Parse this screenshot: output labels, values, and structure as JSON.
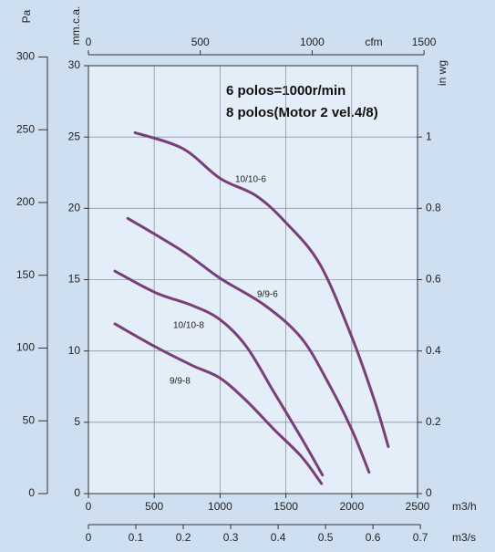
{
  "chart_data": {
    "type": "line",
    "annotations": [
      "6 polos=1000r/min",
      "8 polos(Motor 2 vel.4/8)"
    ],
    "x_label": "m3/h",
    "xlim": [
      0,
      2500
    ],
    "xticks": [
      0,
      500,
      1000,
      1500,
      2000,
      2500
    ],
    "y_label": "mm.c.a.",
    "ylim": [
      0,
      30
    ],
    "yticks": [
      0,
      5,
      10,
      15,
      20,
      25,
      30
    ],
    "grid": true,
    "pa_axis": {
      "label": "Pa",
      "lim": [
        0,
        294
      ],
      "ticks": [
        0,
        50,
        100,
        150,
        200,
        250,
        300
      ]
    },
    "inwg_axis": {
      "label": "in wg",
      "lim": [
        0,
        1.2
      ],
      "ticks": [
        0,
        0.2,
        0.4,
        0.6,
        0.8,
        1
      ]
    },
    "cfm_axis": {
      "label": "cfm",
      "lim": [
        0,
        1471
      ],
      "ticks": [
        0,
        500,
        1000,
        1500
      ]
    },
    "m3s_axis": {
      "label": "m3/s",
      "lim": [
        0,
        0.694
      ],
      "ticks": [
        0,
        0.1,
        0.2,
        0.3,
        0.4,
        0.5,
        0.6,
        0.7
      ]
    },
    "series": [
      {
        "name": "10/10-6",
        "color": "#7a3e78",
        "x": [
          354,
          715,
          1000,
          1271,
          1500,
          1757,
          2000,
          2174,
          2278
        ],
        "values": [
          25.3,
          24.2,
          22.1,
          20.9,
          19.0,
          16.1,
          11.0,
          6.5,
          3.3
        ]
      },
      {
        "name": "9/9-6",
        "color": "#7a3e78",
        "x": [
          299,
          715,
          1000,
          1340,
          1618,
          1826,
          2000,
          2132
        ],
        "values": [
          19.3,
          17.0,
          15.1,
          13.2,
          10.9,
          7.7,
          4.5,
          1.5
        ]
      },
      {
        "name": "10/10-8",
        "color": "#7a3e78",
        "x": [
          201,
          507,
          785,
          1000,
          1201,
          1410,
          1618,
          1778
        ],
        "values": [
          15.6,
          14.1,
          13.2,
          12.2,
          10.3,
          7.1,
          3.9,
          1.3
        ]
      },
      {
        "name": "9/9-8",
        "color": "#7a3e78",
        "x": [
          201,
          507,
          785,
          1000,
          1201,
          1410,
          1618,
          1771
        ],
        "values": [
          11.9,
          10.3,
          9.0,
          8.1,
          6.5,
          4.5,
          2.6,
          0.7
        ]
      }
    ]
  }
}
